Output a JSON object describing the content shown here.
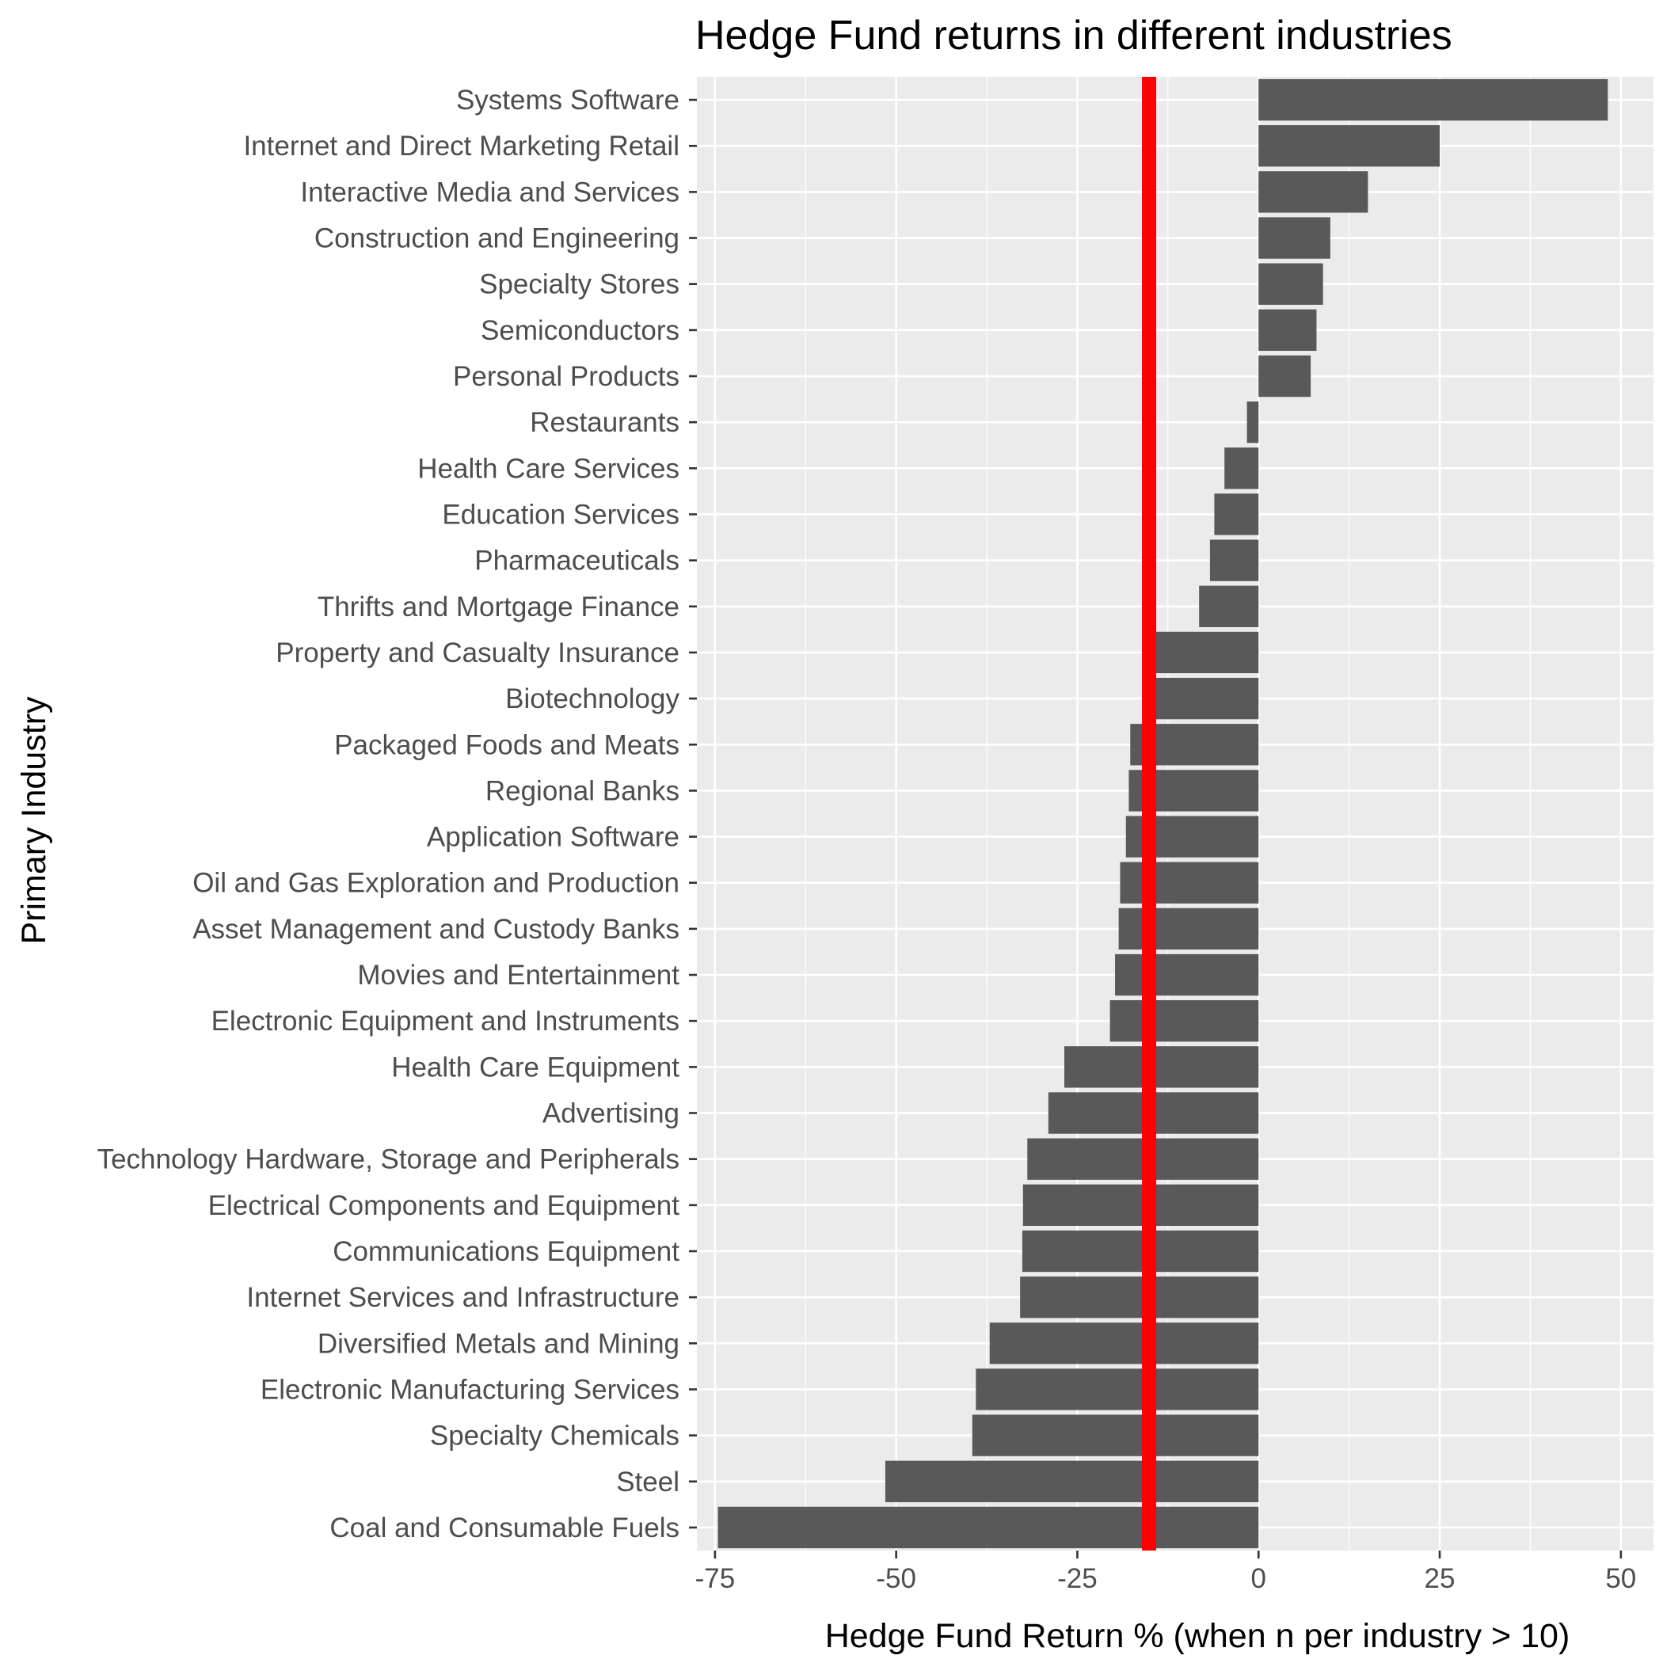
{
  "chart_data": {
    "type": "bar",
    "orientation": "horizontal",
    "title": "Hedge Fund returns in different industries",
    "xlabel": "Hedge Fund Return % (when n per industry > 10)",
    "ylabel": "Primary Industry",
    "xlim": [
      -77.5,
      54.5
    ],
    "x_ticks": [
      -75,
      -50,
      -25,
      0,
      25,
      50
    ],
    "x_tick_labels": [
      "-75",
      "-50",
      "-25",
      "0",
      "25",
      "50"
    ],
    "grid": true,
    "colors": {
      "bar": "#595959",
      "reference_line": "#FF0000",
      "panel": "#EBEBEB",
      "grid": "#FFFFFF"
    },
    "reference_line": {
      "orientation": "vertical",
      "x": -15.1
    },
    "categories": [
      "Systems Software",
      "Internet and Direct Marketing Retail",
      "Interactive Media and Services",
      "Construction and Engineering",
      "Specialty Stores",
      "Semiconductors",
      "Personal Products",
      "Restaurants",
      "Health Care Services",
      "Education Services",
      "Pharmaceuticals",
      "Thrifts and Mortgage Finance",
      "Property and Casualty Insurance",
      "Biotechnology",
      "Packaged Foods and Meats",
      "Regional Banks",
      "Application Software",
      "Oil and Gas Exploration and Production",
      "Asset Management and Custody Banks",
      "Movies and Entertainment",
      "Electronic Equipment and Instruments",
      "Health Care Equipment",
      "Advertising",
      "Technology Hardware, Storage and Peripherals",
      "Electrical Components and Equipment",
      "Communications Equipment",
      "Internet Services and Infrastructure",
      "Diversified Metals and Mining",
      "Electronic Manufacturing Services",
      "Specialty Chemicals",
      "Steel",
      "Coal and Consumable Fuels"
    ],
    "values": [
      48.2,
      25.0,
      15.1,
      9.9,
      8.9,
      8.0,
      7.2,
      -1.6,
      -4.7,
      -6.1,
      -6.7,
      -8.2,
      -14.4,
      -14.6,
      -17.7,
      -17.9,
      -18.3,
      -19.1,
      -19.3,
      -19.8,
      -20.5,
      -26.8,
      -29.0,
      -31.9,
      -32.5,
      -32.6,
      -32.9,
      -37.1,
      -39.0,
      -39.5,
      -51.5,
      -74.6
    ]
  }
}
